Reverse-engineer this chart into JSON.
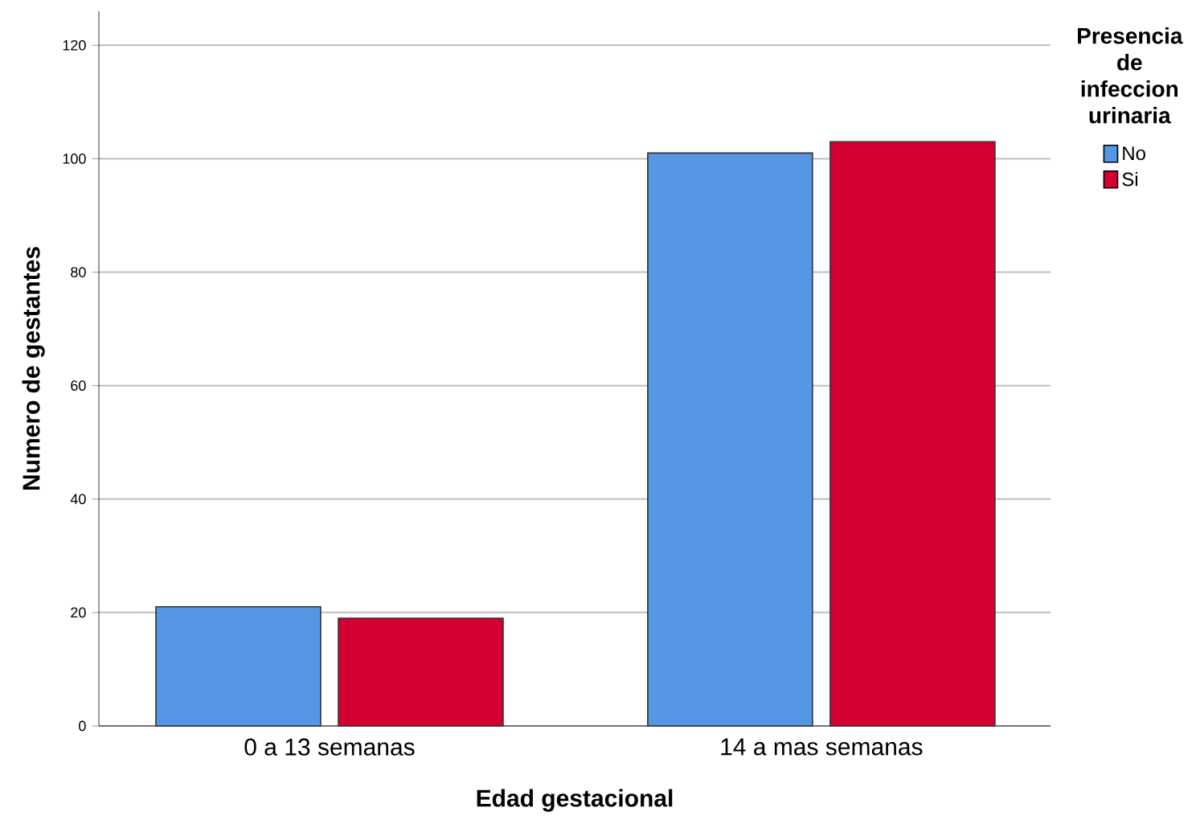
{
  "chart_data": {
    "type": "bar",
    "xlabel": "Edad gestacional",
    "ylabel": "Numero de gestantes",
    "legend_title": "Presencia de infeccion urinaria",
    "categories": [
      "0 a 13 semanas",
      "14 a mas semanas"
    ],
    "series": [
      {
        "name": "No",
        "color": "#5596e5",
        "values": [
          21,
          101
        ]
      },
      {
        "name": "Si",
        "color": "#d50032",
        "values": [
          19,
          103
        ]
      }
    ],
    "ylim": [
      0,
      126
    ],
    "yticks": [
      0,
      20,
      40,
      60,
      80,
      100,
      120
    ],
    "grid": "y",
    "legend": "right"
  }
}
